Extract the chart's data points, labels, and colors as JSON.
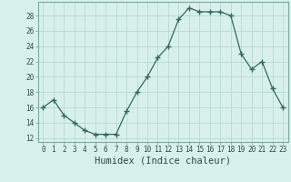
{
  "x": [
    0,
    1,
    2,
    3,
    4,
    5,
    6,
    7,
    8,
    9,
    10,
    11,
    12,
    13,
    14,
    15,
    16,
    17,
    18,
    19,
    20,
    21,
    22,
    23
  ],
  "y": [
    16,
    17,
    15,
    14,
    13,
    12.5,
    12.5,
    12.5,
    15.5,
    18,
    20,
    22.5,
    24,
    27.5,
    29,
    28.5,
    28.5,
    28.5,
    28,
    23,
    21,
    22,
    18.5,
    16
  ],
  "line_color": "#2d6b5e",
  "marker": "+",
  "marker_size": 4,
  "bg_color": "#d8f0ec",
  "grid_color": "#b8d8d0",
  "xlabel": "Humidex (Indice chaleur)",
  "xlim": [
    -0.5,
    23.5
  ],
  "ylim": [
    11.5,
    29.8
  ],
  "yticks": [
    12,
    14,
    16,
    18,
    20,
    22,
    24,
    26,
    28
  ],
  "xticks": [
    0,
    1,
    2,
    3,
    4,
    5,
    6,
    7,
    8,
    9,
    10,
    11,
    12,
    13,
    14,
    15,
    16,
    17,
    18,
    19,
    20,
    21,
    22,
    23
  ],
  "tick_fontsize": 5.5,
  "label_fontsize": 7.5
}
